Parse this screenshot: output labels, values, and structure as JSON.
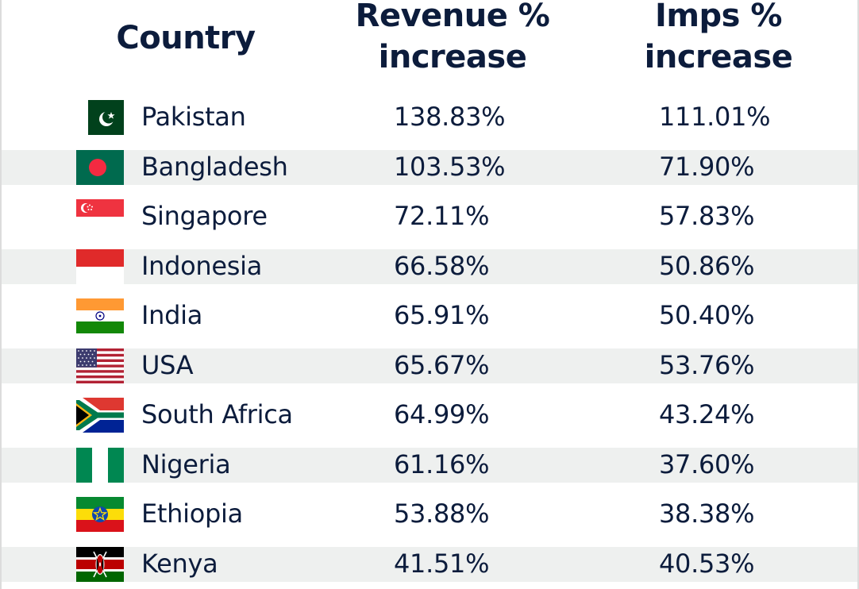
{
  "header": {
    "country": "Country",
    "revenue_line1": "Revenue %",
    "revenue_line2": "increase",
    "imps_line1": "Imps %",
    "imps_line2": "increase"
  },
  "rows": [
    {
      "country": "Pakistan",
      "revenue": "138.83%",
      "imps": "111.01%",
      "flag_icon": "pakistan-flag-icon"
    },
    {
      "country": "Bangladesh",
      "revenue": "103.53%",
      "imps": "71.90%",
      "flag_icon": "bangladesh-flag-icon"
    },
    {
      "country": "Singapore",
      "revenue": "72.11%",
      "imps": "57.83%",
      "flag_icon": "singapore-flag-icon"
    },
    {
      "country": "Indonesia",
      "revenue": "66.58%",
      "imps": "50.86%",
      "flag_icon": "indonesia-flag-icon"
    },
    {
      "country": "India",
      "revenue": "65.91%",
      "imps": "50.40%",
      "flag_icon": "india-flag-icon"
    },
    {
      "country": "USA",
      "revenue": "65.67%",
      "imps": "53.76%",
      "flag_icon": "usa-flag-icon"
    },
    {
      "country": "South Africa",
      "revenue": "64.99%",
      "imps": "43.24%",
      "flag_icon": "south-africa-flag-icon"
    },
    {
      "country": "Nigeria",
      "revenue": "61.16%",
      "imps": "37.60%",
      "flag_icon": "nigeria-flag-icon"
    },
    {
      "country": "Ethiopia",
      "revenue": "53.88%",
      "imps": "38.38%",
      "flag_icon": "ethiopia-flag-icon"
    },
    {
      "country": "Kenya",
      "revenue": "41.51%",
      "imps": "40.53%",
      "flag_icon": "kenya-flag-icon"
    }
  ],
  "colors": {
    "text": "#0c1c3c",
    "row_shade": "#eef0ef",
    "background": "#ffffff"
  }
}
